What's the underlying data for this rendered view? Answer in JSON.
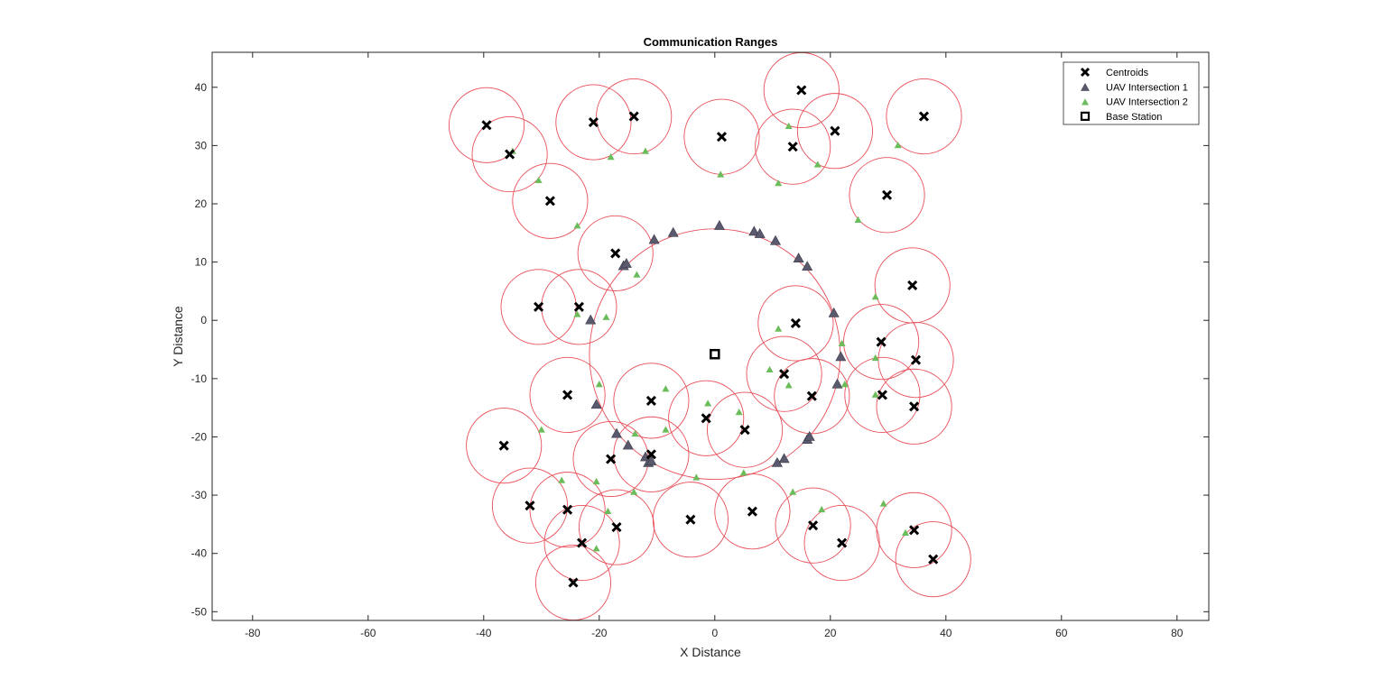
{
  "chart_data": {
    "type": "scatter",
    "title": "Communication Ranges",
    "xlabel": "X Distance",
    "ylabel": "Y Distance",
    "xlim": [
      -87,
      85.5
    ],
    "ylim": [
      -51.5,
      46
    ],
    "xticks": [
      -80,
      -60,
      -40,
      -20,
      0,
      20,
      40,
      60,
      80
    ],
    "yticks": [
      -50,
      -40,
      -30,
      -20,
      -10,
      0,
      10,
      20,
      30,
      40
    ],
    "grid": false,
    "legend_position": "top-right",
    "colors": {
      "circle": "#e8505a",
      "centroid": "#000000",
      "uav1": "#5a5a6e",
      "uav2": "#6bbd5b",
      "base": "#000000"
    },
    "series": [
      {
        "name": "Centroids",
        "marker": "x",
        "points": [
          [
            -39.5,
            33.5
          ],
          [
            -35.5,
            28.5
          ],
          [
            -28.5,
            20.5
          ],
          [
            -21,
            34
          ],
          [
            -14,
            35
          ],
          [
            1.2,
            31.5
          ],
          [
            15,
            39.5
          ],
          [
            13.5,
            29.8
          ],
          [
            20.8,
            32.5
          ],
          [
            36.2,
            35
          ],
          [
            29.8,
            21.5
          ],
          [
            -17.2,
            11.5
          ],
          [
            -30.5,
            2.3
          ],
          [
            -23.5,
            2.3
          ],
          [
            14,
            -0.5
          ],
          [
            34.2,
            6
          ],
          [
            28.8,
            -3.7
          ],
          [
            34.8,
            -6.8
          ],
          [
            12,
            -9.2
          ],
          [
            16.8,
            -13
          ],
          [
            29,
            -12.8
          ],
          [
            34.5,
            -14.8
          ],
          [
            -25.5,
            -12.8
          ],
          [
            -11,
            -13.8
          ],
          [
            -1.5,
            -16.8
          ],
          [
            5.2,
            -18.8
          ],
          [
            -36.5,
            -21.5
          ],
          [
            -18,
            -23.8
          ],
          [
            -11,
            -23
          ],
          [
            -32,
            -31.8
          ],
          [
            -25.5,
            -32.5
          ],
          [
            -17,
            -35.5
          ],
          [
            -4.2,
            -34.2
          ],
          [
            6.5,
            -32.8
          ],
          [
            17,
            -35.2
          ],
          [
            22,
            -38.2
          ],
          [
            34.5,
            -36
          ],
          [
            37.8,
            -41
          ],
          [
            -23,
            -38.2
          ],
          [
            -24.5,
            -45
          ]
        ]
      },
      {
        "name": "UAV Intersection 1",
        "marker": "triangle",
        "points": [
          [
            -10.5,
            13.8
          ],
          [
            -7.2,
            15
          ],
          [
            0.8,
            16.2
          ],
          [
            6.8,
            15.2
          ],
          [
            7.8,
            14.8
          ],
          [
            10.5,
            13.6
          ],
          [
            14.5,
            10.6
          ],
          [
            16,
            9.2
          ],
          [
            -15.8,
            9.3
          ],
          [
            -15.3,
            9.7
          ],
          [
            -21.5,
            0
          ],
          [
            20.6,
            1.2
          ],
          [
            21.8,
            -6.3
          ],
          [
            21.2,
            -11
          ],
          [
            -20.5,
            -14.5
          ],
          [
            -17,
            -19.5
          ],
          [
            -15,
            -21.5
          ],
          [
            -12,
            -23.5
          ],
          [
            -11.5,
            -24.5
          ],
          [
            -11,
            -24.2
          ],
          [
            10.8,
            -24.5
          ],
          [
            12,
            -23.8
          ],
          [
            16,
            -20.5
          ],
          [
            16.4,
            -20
          ]
        ]
      },
      {
        "name": "UAV Intersection 2",
        "marker": "triangle-small",
        "points": [
          [
            -35,
            29
          ],
          [
            -30.5,
            24
          ],
          [
            -18,
            28
          ],
          [
            -12,
            29
          ],
          [
            1,
            25
          ],
          [
            11,
            23.5
          ],
          [
            12.8,
            33.3
          ],
          [
            17.8,
            26.7
          ],
          [
            31.7,
            30
          ],
          [
            24.8,
            17.2
          ],
          [
            -23.8,
            16.2
          ],
          [
            -23.8,
            1
          ],
          [
            27.8,
            4
          ],
          [
            27.8,
            -6.5
          ],
          [
            27.8,
            -12.8
          ],
          [
            22.5,
            -11
          ],
          [
            -30,
            -18.8
          ],
          [
            -26.5,
            -27.5
          ],
          [
            -20.5,
            -27.7
          ],
          [
            -18.5,
            -32.8
          ],
          [
            -14,
            -29.5
          ],
          [
            -20.5,
            -39.2
          ],
          [
            13.5,
            -29.5
          ],
          [
            18.5,
            -32.5
          ],
          [
            29.2,
            -31.5
          ],
          [
            33,
            -36.5
          ],
          [
            -18.8,
            0.5
          ],
          [
            -13.5,
            7.8
          ],
          [
            11,
            -1.5
          ],
          [
            -20,
            -11
          ],
          [
            -8.5,
            -11.8
          ],
          [
            -1.2,
            -14.3
          ],
          [
            9.5,
            -8.5
          ],
          [
            12.8,
            -11.2
          ],
          [
            -13.8,
            -19.5
          ],
          [
            -8.5,
            -18.8
          ],
          [
            4.2,
            -15.8
          ],
          [
            -3.2,
            -27
          ],
          [
            5,
            -26.2
          ],
          [
            22,
            -4
          ]
        ]
      },
      {
        "name": "Base Station",
        "marker": "square",
        "points": [
          [
            0,
            -5.8
          ]
        ]
      }
    ],
    "range_circles": {
      "centroid_radius": 6.5,
      "base_station_radius": 21.7
    }
  }
}
